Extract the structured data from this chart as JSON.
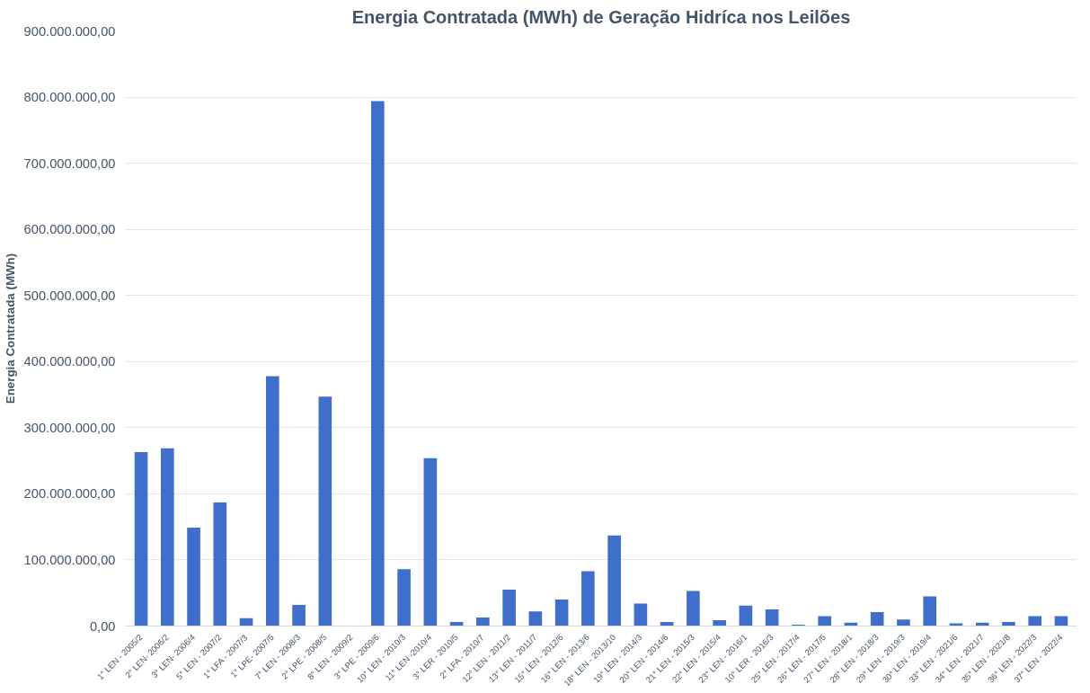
{
  "chart_data": {
    "type": "bar",
    "title": "Energia Contratada (MWh) de Geração Hidríca nos Leilões",
    "ylabel": "Energia Contratada (MWh)",
    "categories": [
      "1° LEN - 2005/2",
      "2° LEN- 2006/2",
      "3° LEN- 2006/4",
      "5° LEN - 2007/2",
      "1° LFA - 2007/3",
      "1° LPE- 2007/5",
      "7° LEN - 2008/3",
      "2° LPE - 2008/5",
      "8° LEN - 2009/2",
      "3° LPE - 2009/6",
      "10° LEN - 2010/3",
      "11° LEN -2010/4",
      "3° LER - 2010/5",
      "2° LFA - 2010/7",
      "12° LEN - 2011/2",
      "13° LEN - 2011/7",
      "15° LEN - 2012/6",
      "16° LEN - 2013/6",
      "18° LEN - 2013/10",
      "19° LEN - 2014/3",
      "20° LEN - 2014/6",
      "21° LEN - 2015/3",
      "22° LEN - 2015/4",
      "23° LEN - 2016/1",
      "10° LER - 2016/3",
      "25° LEN - 2017/4",
      "26° LEN - 2017/5",
      "27° LEN - 2018/1",
      "28° LEN - 2018/3",
      "29° LEN - 2019/3",
      "30° LEN - 2019/4",
      "33° LEN - 2021/6",
      "34° LEN - 2021/7",
      "35° LEN - 2021/8",
      "36° LEN - 2022/3",
      "37° LEN - 2022/4"
    ],
    "values": [
      263000000,
      269000000,
      149000000,
      187000000,
      12000000,
      378000000,
      32000000,
      347000000,
      0,
      794000000,
      86000000,
      254000000,
      6000000,
      13000000,
      55000000,
      22000000,
      40000000,
      83000000,
      137000000,
      34000000,
      6000000,
      53000000,
      9000000,
      31000000,
      25000000,
      2000000,
      15000000,
      5000000,
      21000000,
      10000000,
      45000000,
      4000000,
      5000000,
      6000000,
      15000000,
      15000000
    ],
    "color": "#3f6fca",
    "ylim": [
      0,
      900000000
    ],
    "yticks": [
      {
        "value": 0,
        "label": "0,00"
      },
      {
        "value": 100000000,
        "label": "100.000.000,00"
      },
      {
        "value": 200000000,
        "label": "200.000.000,00"
      },
      {
        "value": 300000000,
        "label": "300.000.000,00"
      },
      {
        "value": 400000000,
        "label": "400.000.000,00"
      },
      {
        "value": 500000000,
        "label": "500.000.000,00"
      },
      {
        "value": 600000000,
        "label": "600.000.000,00"
      },
      {
        "value": 700000000,
        "label": "700.000.000,00"
      },
      {
        "value": 800000000,
        "label": "800.000.000,00"
      },
      {
        "value": 900000000,
        "label": "900.000.000,00"
      }
    ],
    "grid": "y"
  }
}
